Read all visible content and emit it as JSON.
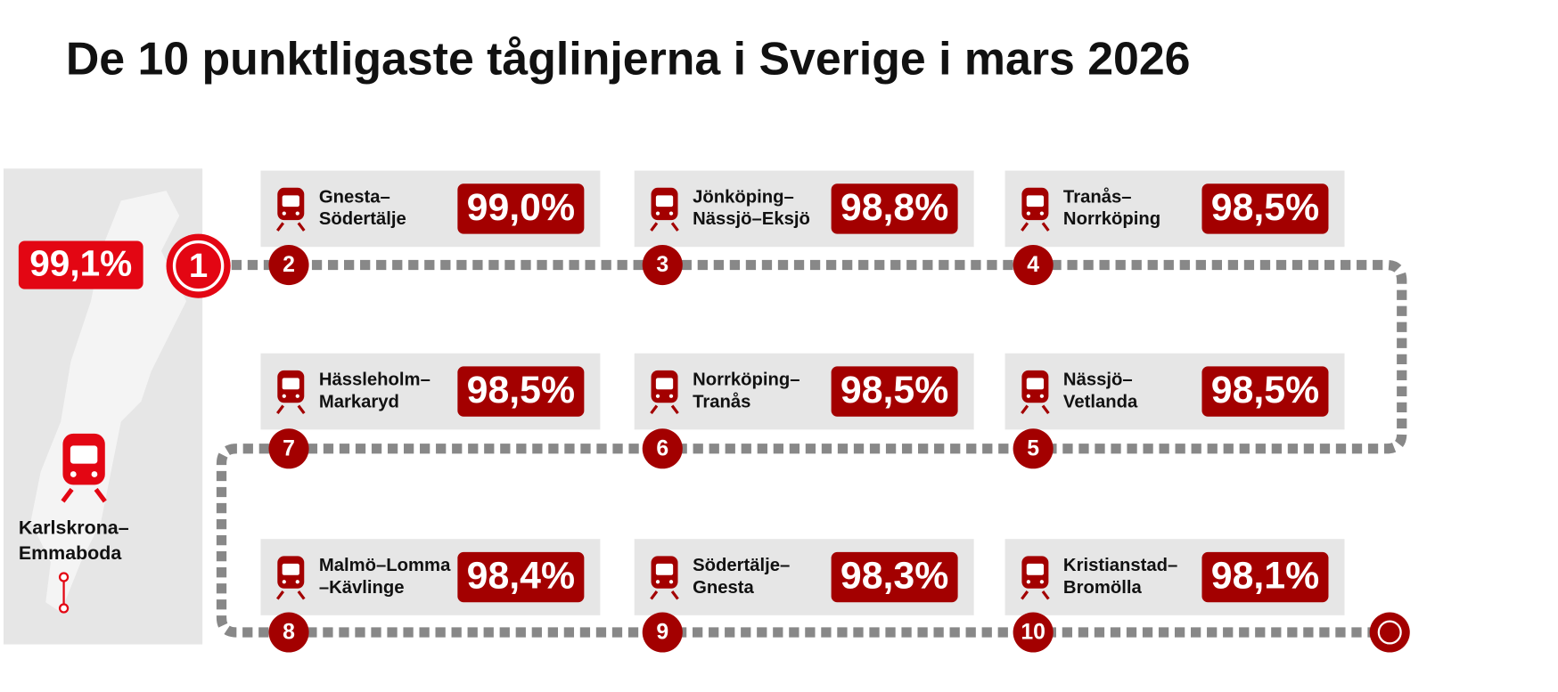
{
  "header": {
    "title": "De 10 punktligaste tåglinjerna i Sverige i mars 2026"
  },
  "items": [
    {
      "rank": 1,
      "route": [
        "Karlskrona–",
        "Emmaboda"
      ],
      "value": "99,1%"
    },
    {
      "rank": 2,
      "route": [
        "Gnesta–",
        "Södertälje"
      ],
      "value": "99,0%"
    },
    {
      "rank": 3,
      "route": [
        "Jönköping–",
        "Nässjö–Eksjö"
      ],
      "value": "98,8%"
    },
    {
      "rank": 4,
      "route": [
        "Tranås–",
        "Norrköping"
      ],
      "value": "98,5%"
    },
    {
      "rank": 5,
      "route": [
        "Nässjö–",
        "Vetlanda"
      ],
      "value": "98,5%"
    },
    {
      "rank": 6,
      "route": [
        "Norrköping–",
        "Tranås"
      ],
      "value": "98,5%"
    },
    {
      "rank": 7,
      "route": [
        "Hässleholm–",
        "Markaryd"
      ],
      "value": "98,5%"
    },
    {
      "rank": 8,
      "route": [
        "Malmö–Lomma",
        "–Kävlinge"
      ],
      "value": "98,4%"
    },
    {
      "rank": 9,
      "route": [
        "Södertälje–",
        "Gnesta"
      ],
      "value": "98,3%"
    },
    {
      "rank": 10,
      "route": [
        "Kristianstad–",
        "Bromölla"
      ],
      "value": "98,1%"
    }
  ]
}
